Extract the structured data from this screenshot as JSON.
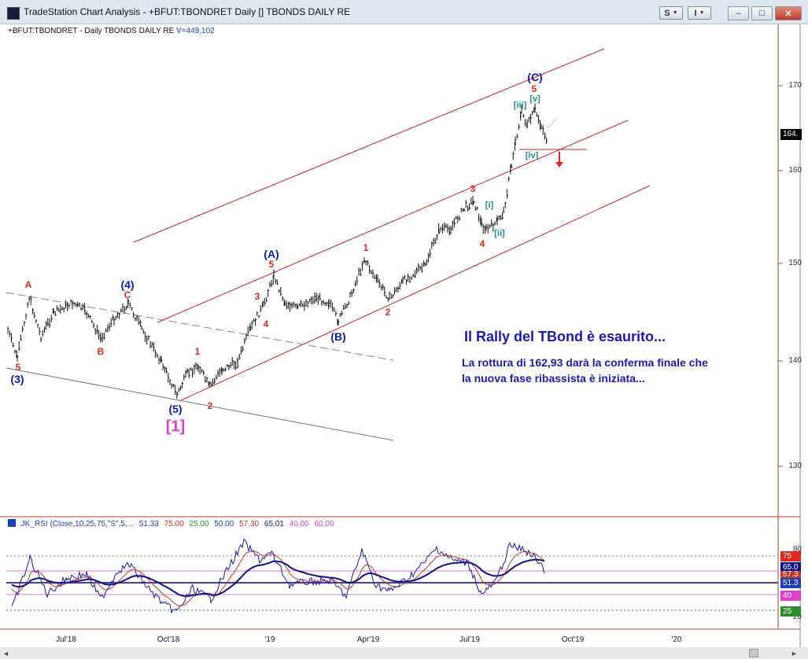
{
  "window": {
    "title": "TradeStation Chart Analysis - +BFUT:TBONDRET Daily [] TBONDS DAILY RE",
    "buttons": {
      "s_label": "S",
      "i_label": "I",
      "minimize": "–",
      "maximize": "□",
      "close": "✕"
    }
  },
  "chart": {
    "symbol_legend": "+BFUT:TBONDRET - Daily  TBONDS DAILY RE",
    "volume_label": "V=449,102",
    "last_price_label": "164.",
    "price_ticks": [
      "170",
      "160",
      "150",
      "140",
      "130"
    ],
    "x_axis_labels": [
      "Jul'18",
      "Oct'18",
      "'19",
      "Apr'19",
      "Jul'19",
      "Oct'19",
      "'20"
    ],
    "annotation_title": "Il Rally del TBond è esaurito...",
    "annotation_line1": "La rottura di 162,93 darà la conferma finale che",
    "annotation_line2": "la nuova fase ribassista è iniziata...",
    "wave_labels": {
      "A": "A",
      "B": "B",
      "C": "C",
      "p4": "(4)",
      "p3": "(3)",
      "p5": "(5)",
      "r5a": "5",
      "b1": "[1]",
      "i1a": "1",
      "i2a": "2",
      "i3a": "3",
      "i4a": "4",
      "i5a": "5",
      "PA": "(A)",
      "PB": "(B)",
      "PC": "(C)",
      "i1b": "1",
      "i2b": "2",
      "i3b": "3",
      "i4b": "4",
      "i5b": "5",
      "ri": "[i]",
      "rii": "[ii]",
      "riii": "[iii]",
      "riv": "[iv]",
      "rv": "[v]"
    },
    "colors": {
      "wave_red": "#e0281c",
      "wave_blue": "#0b1bb8",
      "wave_teal": "#1f8d92",
      "wave_magenta": "#e040c8",
      "channel": "#d42020"
    }
  },
  "rsi": {
    "legend": {
      "name": "JK_RSI (Close,10,25,75,\"S\",5,...",
      "v1": "51.33",
      "v2": "75.00",
      "v3": "25.00",
      "v4": "50.00",
      "v5": "57.30",
      "v6": "65.01",
      "v7": "40.00",
      "v8": "60.00"
    },
    "axis_ticks": [
      "80",
      "20"
    ],
    "badges": [
      "75",
      "65.0",
      "57.3",
      "51.3",
      "40",
      "25"
    ]
  },
  "scrollbar": {
    "left_arrow": "◄",
    "right_arrow": "►"
  }
}
